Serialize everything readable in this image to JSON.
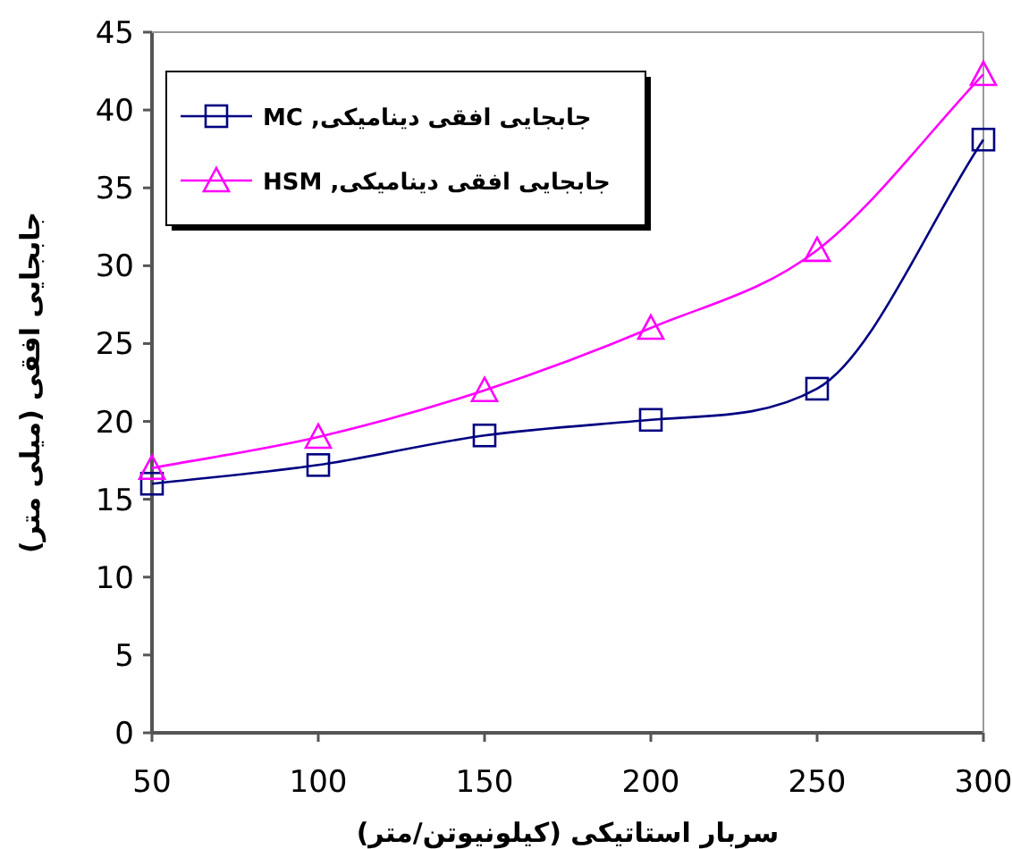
{
  "chart_data": {
    "type": "line",
    "xlabel": "سربار استاتیکی (کیلونیوتن/متر)",
    "ylabel": "جابجایی افقی (میلی متر)",
    "x": [
      50,
      100,
      150,
      200,
      250,
      300
    ],
    "series": [
      {
        "name": "جابجایی افقی دینامیکی, MC",
        "color": "#000080",
        "marker": "square",
        "values": [
          16,
          17.2,
          19.1,
          20.1,
          22.1,
          38.1
        ]
      },
      {
        "name": "جابجایی افقی دینامیکی, HSM",
        "color": "#ff00ff",
        "marker": "triangle",
        "values": [
          17,
          19,
          22,
          26,
          31,
          42.3
        ]
      }
    ],
    "xlim": [
      50,
      300
    ],
    "xticks": [
      50,
      100,
      150,
      200,
      250,
      300
    ],
    "ylim": [
      0,
      45
    ],
    "yticks": [
      0,
      5,
      10,
      15,
      20,
      25,
      30,
      35,
      40,
      45
    ],
    "grid": false,
    "legend": "top left",
    "line_style": "solid"
  }
}
